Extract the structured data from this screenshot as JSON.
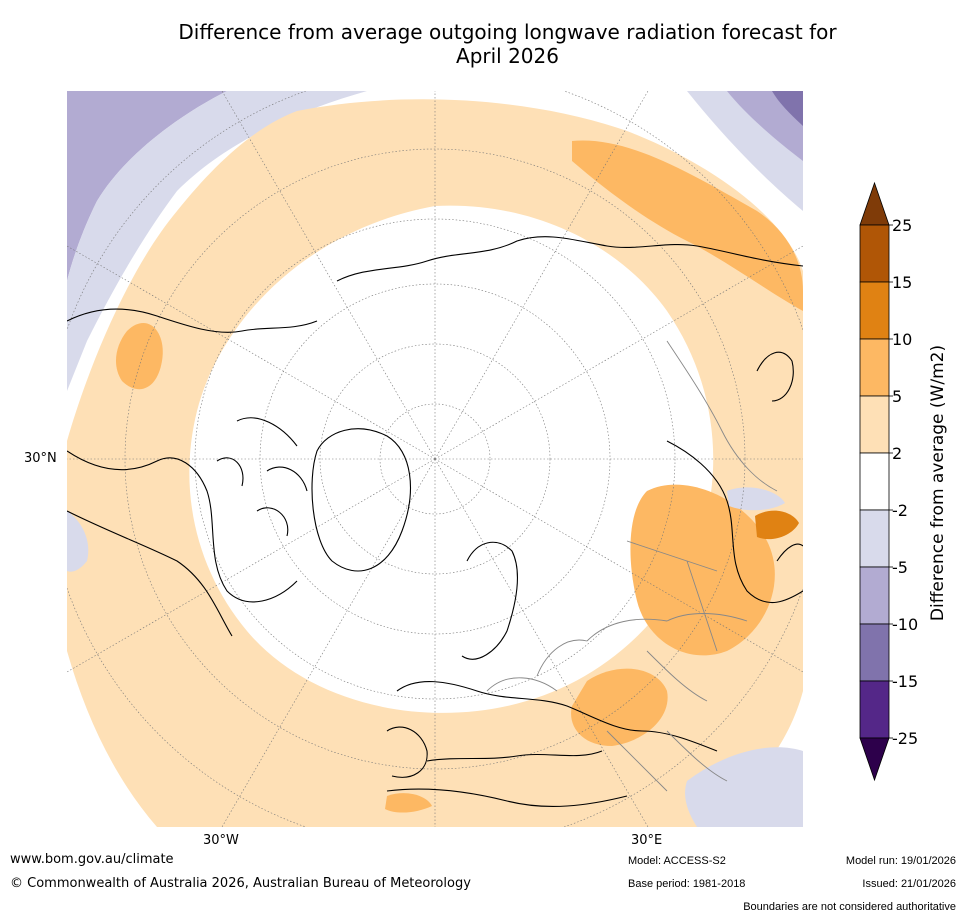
{
  "title_line1": "Difference from average outgoing longwave radiation forecast for",
  "title_line2": "April 2026",
  "map": {
    "projection": "north-polar-stereographic",
    "labels": {
      "lat30n": "30°N",
      "lon30w": "30°W",
      "lon30e": "30°E"
    }
  },
  "colorbar": {
    "label": "Difference from average (W/m2)",
    "ticks": [
      "25",
      "15",
      "10",
      "5",
      "2",
      "-2",
      "-5",
      "-10",
      "-15",
      "-25"
    ],
    "bins_top_to_bottom": [
      {
        "range": "15 to 25",
        "color": "#b05606"
      },
      {
        "range": "10 to 15",
        "color": "#e08213"
      },
      {
        "range": "5 to 10",
        "color": "#fdb863"
      },
      {
        "range": "2 to 5",
        "color": "#fee0b6"
      },
      {
        "range": "-2 to 2",
        "color": "#ffffff"
      },
      {
        "range": "-5 to -2",
        "color": "#d8daeb"
      },
      {
        "range": "-10 to -5",
        "color": "#b2abd2"
      },
      {
        "range": "-15 to -10",
        "color": "#8073ac"
      },
      {
        "range": "-25 to -15",
        "color": "#542788"
      }
    ],
    "above_max_color": "#7f3b08",
    "below_min_color": "#2d004b"
  },
  "footer": {
    "url": "www.bom.gov.au/climate",
    "copyright": "© Commonwealth of Australia 2026, Australian Bureau of Meteorology",
    "model": "Model: ACCESS-S2",
    "base_period": "Base period: 1981-2018",
    "model_run": "Model run: 19/01/2026",
    "issued": "Issued: 21/01/2026",
    "disclaimer": "Boundaries are not considered authoritative"
  }
}
